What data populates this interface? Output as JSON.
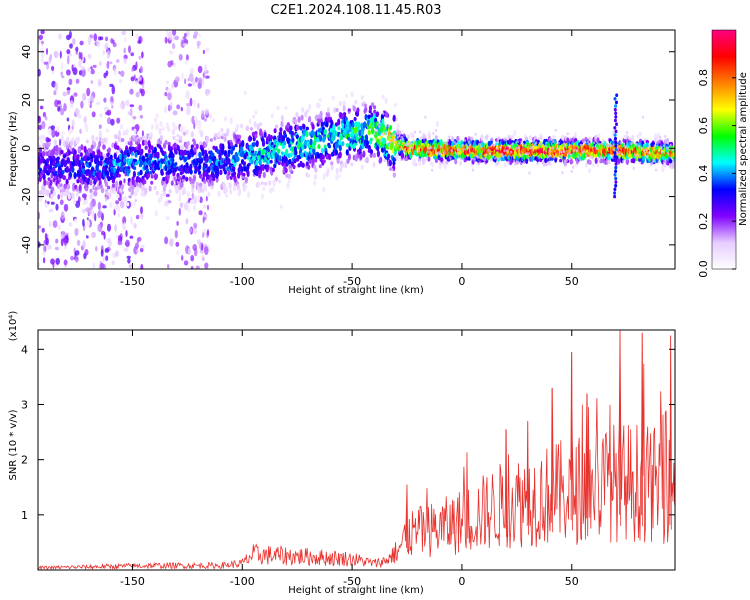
{
  "title": "C2E1.2024.108.11.45.R03",
  "chart_data": [
    {
      "type": "heatmap",
      "panel": "spectrogram",
      "xlabel": "Height of straight line (km)",
      "ylabel": "Frequency (Hz)",
      "xlim": [
        -193,
        97
      ],
      "ylim": [
        -50,
        49
      ],
      "xticks": [
        -150,
        -100,
        -50,
        0,
        50
      ],
      "xtick_labels": [
        "-150",
        "-100",
        "-50",
        "0",
        "50"
      ],
      "yticks": [
        -40,
        -20,
        0,
        20,
        40
      ],
      "ytick_labels": [
        "-40",
        "-20",
        "0",
        "20",
        "40"
      ],
      "colorbar": {
        "label": "Normalized spectral amplitude",
        "range": [
          0,
          1
        ],
        "ticks": [
          0.0,
          0.2,
          0.4,
          0.6,
          0.8
        ],
        "tick_labels": [
          "0.0",
          "0.2",
          "0.4",
          "0.6",
          "0.8"
        ],
        "colormap": [
          "#ffffff",
          "#e6ccff",
          "#8000ff",
          "#0000ff",
          "#00ffff",
          "#00ff00",
          "#ffff00",
          "#ff8000",
          "#ff0000",
          "#ff0080"
        ]
      },
      "signal_track": {
        "x": [
          -190,
          -170,
          -150,
          -130,
          -115,
          -100,
          -90,
          -80,
          -70,
          -60,
          -50,
          -40,
          -35,
          -30,
          -25,
          0,
          25,
          50,
          70,
          95
        ],
        "freq": [
          -8,
          -8,
          -6,
          -6,
          -6,
          -4,
          -2,
          0,
          2,
          4,
          6,
          7,
          5,
          2,
          0,
          -1,
          -1,
          -1,
          -1,
          -2
        ],
        "peak_amplitude": [
          0.3,
          0.35,
          0.4,
          0.35,
          0.35,
          0.4,
          0.45,
          0.45,
          0.5,
          0.45,
          0.5,
          0.55,
          0.6,
          0.75,
          0.8,
          0.85,
          0.9,
          0.9,
          0.85,
          0.8
        ]
      },
      "noise_regions": [
        {
          "x_range": [
            -193,
            -145
          ],
          "freq_range": [
            -50,
            49
          ],
          "amplitude": 0.15
        },
        {
          "x_range": [
            -135,
            -115
          ],
          "freq_range": [
            -50,
            49
          ],
          "amplitude": 0.12
        }
      ],
      "interference_lines": [
        {
          "x": 70,
          "freq_range": [
            -20,
            22
          ]
        }
      ]
    },
    {
      "type": "line",
      "panel": "snr",
      "xlabel": "Height of straight line (km)",
      "ylabel": "SNR (10 * v/v)",
      "y_multiplier": "(x10⁴)",
      "xlim": [
        -193,
        97
      ],
      "ylim": [
        0,
        4.35
      ],
      "xticks": [
        -150,
        -100,
        -50,
        0,
        50
      ],
      "xtick_labels": [
        "-150",
        "-100",
        "-50",
        "0",
        "50"
      ],
      "yticks": [
        1,
        2,
        3,
        4
      ],
      "ytick_labels": [
        "1",
        "2",
        "3",
        "4"
      ],
      "series": [
        {
          "color": "#e8322e",
          "envelope_x": [
            -193,
            -140,
            -110,
            -100,
            -95,
            -70,
            -50,
            -40,
            -35,
            -30,
            -25,
            -10,
            0,
            10,
            20,
            30,
            40,
            50,
            60,
            70,
            80,
            90,
            97
          ],
          "envelope_y": [
            0.05,
            0.1,
            0.1,
            0.15,
            0.35,
            0.3,
            0.25,
            0.15,
            0.2,
            0.4,
            0.8,
            0.95,
            1.1,
            1.3,
            1.5,
            1.6,
            1.7,
            1.8,
            1.9,
            2.0,
            2.0,
            1.9,
            1.8
          ],
          "peaks": [
            {
              "x": 72,
              "y": 4.35
            },
            {
              "x": 82,
              "y": 4.3
            },
            {
              "x": 50,
              "y": 3.95
            },
            {
              "x": 41,
              "y": 3.3
            },
            {
              "x": 57,
              "y": 3.2
            },
            {
              "x": 95,
              "y": 4.25
            },
            {
              "x": 30,
              "y": 2.7
            },
            {
              "x": 20,
              "y": 2.55
            },
            {
              "x": -25,
              "y": 1.55
            }
          ]
        }
      ]
    }
  ]
}
